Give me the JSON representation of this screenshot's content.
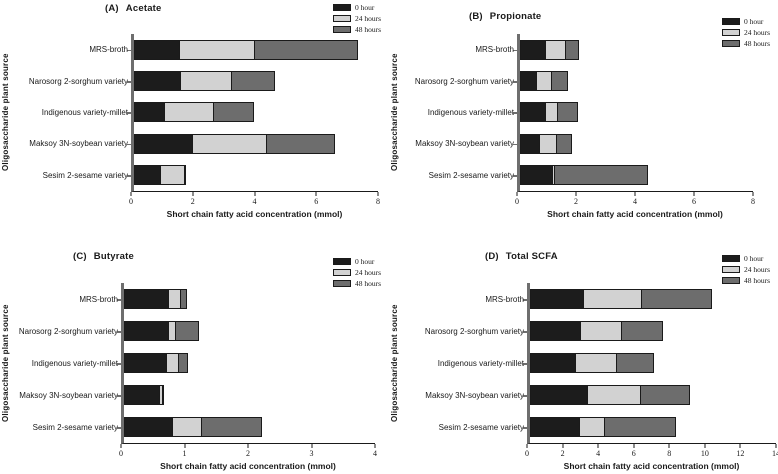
{
  "figure": {
    "background": "#ffffff"
  },
  "legend": {
    "position": "top-right",
    "items": [
      {
        "label": "0 hour",
        "color": "#1c1c1c"
      },
      {
        "label": "24 hours",
        "color": "#d2d2d2"
      },
      {
        "label": "48 hours",
        "color": "#6d6d6d"
      }
    ]
  },
  "chart_data": [
    {
      "type": "bar",
      "orientation": "horizontal",
      "stacked": true,
      "panel_label": "(A)",
      "title": "Acetate",
      "xlabel": "Short chain fatty acid concentration (mmol)",
      "ylabel": "Oligosaccharide plant source",
      "xlim": [
        0,
        8
      ],
      "xticks": [
        0,
        2,
        4,
        6,
        8
      ],
      "grid": false,
      "legend_position": "top-right",
      "categories": [
        "MRS-broth",
        "Narosorg 2-sorghum variety",
        "Indigenous variety-millet",
        "Maksoy 3N-soybean variety",
        "Sesim 2-sesame variety"
      ],
      "series": [
        {
          "name": "0 hour",
          "values": [
            1.5,
            1.55,
            1.0,
            1.95,
            0.9
          ]
        },
        {
          "name": "24 hours",
          "values": [
            2.5,
            1.7,
            1.65,
            2.45,
            0.8
          ]
        },
        {
          "name": "48 hours",
          "values": [
            3.4,
            1.45,
            1.35,
            2.25,
            0.08
          ]
        }
      ]
    },
    {
      "type": "bar",
      "orientation": "horizontal",
      "stacked": true,
      "panel_label": "(B)",
      "title": "Propionate",
      "xlabel": "Short chain fatty acid concentration (mmol)",
      "ylabel": "Oligosaccharide plant source",
      "xlim": [
        0,
        8
      ],
      "xticks": [
        0,
        2,
        4,
        6,
        8
      ],
      "grid": false,
      "legend_position": "top-right",
      "categories": [
        "MRS-broth",
        "Narosorg 2-sorghum variety",
        "Indigenous variety-millet",
        "Maksoy 3N-soybean variety",
        "Sesim 2-sesame variety"
      ],
      "series": [
        {
          "name": "0 hour",
          "values": [
            0.9,
            0.6,
            0.9,
            0.7,
            1.15
          ]
        },
        {
          "name": "24 hours",
          "values": [
            0.7,
            0.55,
            0.45,
            0.6,
            0.1
          ]
        },
        {
          "name": "48 hours",
          "values": [
            0.5,
            0.55,
            0.7,
            0.55,
            3.2
          ]
        }
      ]
    },
    {
      "type": "bar",
      "orientation": "horizontal",
      "stacked": true,
      "panel_label": "(C)",
      "title": "Butyrate",
      "xlabel": "Short chain fatty acid concentration (mmol)",
      "ylabel": "Oligosaccharide plant source",
      "xlim": [
        0,
        4
      ],
      "xticks": [
        0,
        1,
        2,
        3,
        4
      ],
      "grid": false,
      "legend_position": "top-right",
      "categories": [
        "MRS-broth",
        "Narosorg 2-sorghum variety",
        "Indigenous variety-millet",
        "Maksoy 3N-soybean variety",
        "Sesim 2-sesame variety"
      ],
      "series": [
        {
          "name": "0 hour",
          "values": [
            0.72,
            0.72,
            0.68,
            0.58,
            0.78
          ]
        },
        {
          "name": "24 hours",
          "values": [
            0.21,
            0.13,
            0.22,
            0.05,
            0.48
          ]
        },
        {
          "name": "48 hours",
          "values": [
            0.1,
            0.38,
            0.16,
            0.03,
            0.97
          ]
        }
      ]
    },
    {
      "type": "bar",
      "orientation": "horizontal",
      "stacked": true,
      "panel_label": "(D)",
      "title": "Total SCFA",
      "xlabel": "Short chain fatty acid concentration (mmol)",
      "ylabel": "Oligosaccharide plant source",
      "xlim": [
        0,
        14
      ],
      "xticks": [
        0,
        2,
        4,
        6,
        8,
        10,
        12,
        14
      ],
      "grid": false,
      "legend_position": "top-right",
      "categories": [
        "MRS-broth",
        "Narosorg 2-sorghum variety",
        "Indigenous variety-millet",
        "Maksoy 3N-soybean variety",
        "Sesim 2-sesame variety"
      ],
      "series": [
        {
          "name": "0 hour",
          "values": [
            3.1,
            2.9,
            2.6,
            3.3,
            2.85
          ]
        },
        {
          "name": "24 hours",
          "values": [
            3.35,
            2.4,
            2.4,
            3.05,
            1.45
          ]
        },
        {
          "name": "48 hours",
          "values": [
            4.05,
            2.4,
            2.15,
            2.85,
            4.15
          ]
        }
      ]
    }
  ]
}
